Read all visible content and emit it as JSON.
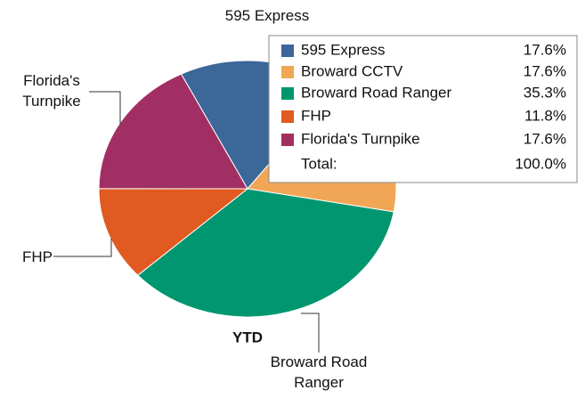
{
  "chart_data": {
    "type": "pie",
    "subtitle": "YTD",
    "categories": [
      "595 Express",
      "Broward CCTV",
      "Broward Road Ranger",
      "FHP",
      "Florida's Turnpike"
    ],
    "values": [
      17.6,
      17.6,
      35.3,
      11.8,
      17.6
    ],
    "value_labels": [
      "17.6%",
      "17.6%",
      "35.3%",
      "11.8%",
      "17.6%"
    ],
    "colors": [
      "#3b6799",
      "#f1a655",
      "#00966f",
      "#e05a21",
      "#a22f63"
    ],
    "total_label": "Total:",
    "total": 100,
    "total_value_label": "100.0%"
  }
}
